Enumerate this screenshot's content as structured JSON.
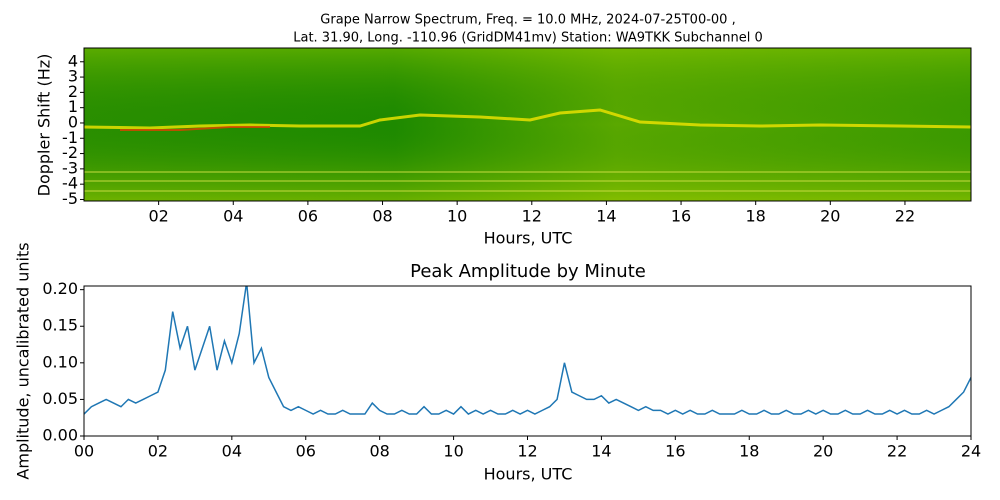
{
  "chart_data": [
    {
      "type": "spectrogram",
      "title": [
        "Grape Narrow Spectrum, Freq. = 10.0 MHz, 2024-07-25T00-00 ,",
        "Lat.  31.90, Long. -110.96 (GridDM41mv) Station: WA9TKK Subchannel 0"
      ],
      "xlabel": "Hours, UTC",
      "ylabel": "Doppler Shift (Hz)",
      "xlim": [
        0,
        23.77
      ],
      "ylim": [
        -5.1,
        4.9
      ],
      "xticks": [
        {
          "value": 2,
          "label": "02"
        },
        {
          "value": 4,
          "label": "04"
        },
        {
          "value": 6,
          "label": "06"
        },
        {
          "value": 8,
          "label": "08"
        },
        {
          "value": 10,
          "label": "10"
        },
        {
          "value": 12,
          "label": "12"
        },
        {
          "value": 14,
          "label": "14"
        },
        {
          "value": 16,
          "label": "16"
        },
        {
          "value": 18,
          "label": "18"
        },
        {
          "value": 20,
          "label": "20"
        },
        {
          "value": 22,
          "label": "22"
        }
      ],
      "yticks": [
        4,
        3,
        2,
        1,
        0,
        -1,
        -2,
        -3,
        -4,
        -5
      ]
    },
    {
      "type": "line",
      "title": "Peak Amplitude by Minute",
      "xlabel": "Hours, UTC",
      "ylabel": "Amplitude, uncalibrated units",
      "color": "#1f77b4",
      "xlim": [
        0,
        24
      ],
      "ylim": [
        0,
        0.205
      ],
      "xticks": [
        {
          "value": 0,
          "label": "00"
        },
        {
          "value": 2,
          "label": "02"
        },
        {
          "value": 4,
          "label": "04"
        },
        {
          "value": 6,
          "label": "06"
        },
        {
          "value": 8,
          "label": "08"
        },
        {
          "value": 10,
          "label": "10"
        },
        {
          "value": 12,
          "label": "12"
        },
        {
          "value": 14,
          "label": "14"
        },
        {
          "value": 16,
          "label": "16"
        },
        {
          "value": 18,
          "label": "18"
        },
        {
          "value": 20,
          "label": "20"
        },
        {
          "value": 22,
          "label": "22"
        },
        {
          "value": 24,
          "label": "24"
        }
      ],
      "yticks": [
        {
          "value": 0,
          "label": "0.00"
        },
        {
          "value": 0.05,
          "label": "0.05"
        },
        {
          "value": 0.1,
          "label": "0.10"
        },
        {
          "value": 0.15,
          "label": "0.15"
        },
        {
          "value": 0.2,
          "label": "0.20"
        }
      ],
      "x": [
        0,
        0.2,
        0.4,
        0.6,
        0.8,
        1,
        1.2,
        1.4,
        1.6,
        1.8,
        2,
        2.2,
        2.4,
        2.6,
        2.8,
        3,
        3.2,
        3.4,
        3.6,
        3.8,
        4,
        4.2,
        4.4,
        4.6,
        4.8,
        5,
        5.2,
        5.4,
        5.6,
        5.8,
        6,
        6.2,
        6.4,
        6.6,
        6.8,
        7,
        7.2,
        7.4,
        7.6,
        7.8,
        8,
        8.2,
        8.4,
        8.6,
        8.8,
        9,
        9.2,
        9.4,
        9.6,
        9.8,
        10,
        10.2,
        10.4,
        10.6,
        10.8,
        11,
        11.2,
        11.4,
        11.6,
        11.8,
        12,
        12.2,
        12.4,
        12.6,
        12.8,
        13,
        13.2,
        13.4,
        13.6,
        13.8,
        14,
        14.2,
        14.4,
        14.6,
        14.8,
        15,
        15.2,
        15.4,
        15.6,
        15.8,
        16,
        16.2,
        16.4,
        16.6,
        16.8,
        17,
        17.2,
        17.4,
        17.6,
        17.8,
        18,
        18.2,
        18.4,
        18.6,
        18.8,
        19,
        19.2,
        19.4,
        19.6,
        19.8,
        20,
        20.2,
        20.4,
        20.6,
        20.8,
        21,
        21.2,
        21.4,
        21.6,
        21.8,
        22,
        22.2,
        22.4,
        22.6,
        22.8,
        23,
        23.2,
        23.4,
        23.6,
        23.8,
        24
      ],
      "values": [
        0.03,
        0.04,
        0.045,
        0.05,
        0.045,
        0.04,
        0.05,
        0.045,
        0.05,
        0.055,
        0.06,
        0.09,
        0.17,
        0.12,
        0.15,
        0.09,
        0.12,
        0.15,
        0.09,
        0.13,
        0.1,
        0.14,
        0.21,
        0.1,
        0.12,
        0.08,
        0.06,
        0.04,
        0.035,
        0.04,
        0.035,
        0.03,
        0.035,
        0.03,
        0.03,
        0.035,
        0.03,
        0.03,
        0.03,
        0.045,
        0.035,
        0.03,
        0.03,
        0.035,
        0.03,
        0.03,
        0.04,
        0.03,
        0.03,
        0.035,
        0.03,
        0.04,
        0.03,
        0.035,
        0.03,
        0.035,
        0.03,
        0.03,
        0.035,
        0.03,
        0.035,
        0.03,
        0.035,
        0.04,
        0.05,
        0.1,
        0.06,
        0.055,
        0.05,
        0.05,
        0.055,
        0.045,
        0.05,
        0.045,
        0.04,
        0.035,
        0.04,
        0.035,
        0.035,
        0.03,
        0.035,
        0.03,
        0.035,
        0.03,
        0.03,
        0.035,
        0.03,
        0.03,
        0.03,
        0.035,
        0.03,
        0.03,
        0.035,
        0.03,
        0.03,
        0.035,
        0.03,
        0.03,
        0.035,
        0.03,
        0.035,
        0.03,
        0.03,
        0.035,
        0.03,
        0.03,
        0.035,
        0.03,
        0.03,
        0.035,
        0.03,
        0.035,
        0.03,
        0.03,
        0.035,
        0.03,
        0.035,
        0.04,
        0.05,
        0.06,
        0.08
      ]
    }
  ]
}
